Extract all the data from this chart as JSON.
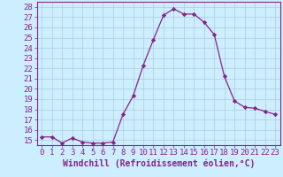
{
  "x": [
    0,
    1,
    2,
    3,
    4,
    5,
    6,
    7,
    8,
    9,
    10,
    11,
    12,
    13,
    14,
    15,
    16,
    17,
    18,
    19,
    20,
    21,
    22,
    23
  ],
  "y": [
    15.3,
    15.3,
    14.7,
    15.2,
    14.8,
    14.7,
    14.7,
    14.8,
    17.5,
    19.3,
    22.3,
    24.8,
    27.2,
    27.8,
    27.3,
    27.3,
    26.5,
    25.3,
    21.2,
    18.8,
    18.2,
    18.1,
    17.8,
    17.5
  ],
  "line_color": "#882288",
  "marker_color": "#882288",
  "bg_color": "#cceeff",
  "grid_color": "#aaccdd",
  "xlabel": "Windchill (Refroidissement éolien,°C)",
  "xlim": [
    -0.5,
    23.5
  ],
  "ylim": [
    14.5,
    28.5
  ],
  "yticks": [
    15,
    16,
    17,
    18,
    19,
    20,
    21,
    22,
    23,
    24,
    25,
    26,
    27,
    28
  ],
  "xticks": [
    0,
    1,
    2,
    3,
    4,
    5,
    6,
    7,
    8,
    9,
    10,
    11,
    12,
    13,
    14,
    15,
    16,
    17,
    18,
    19,
    20,
    21,
    22,
    23
  ],
  "tick_color": "#882288",
  "label_fontsize": 6.5,
  "xlabel_fontsize": 7
}
